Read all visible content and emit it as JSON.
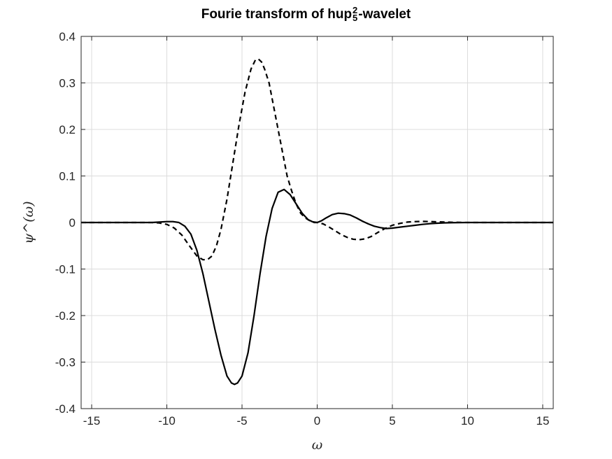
{
  "chart_data": {
    "type": "line",
    "title": {
      "prefix": "Fourie transform of hup",
      "sup": "2",
      "sub": "5",
      "suffix": "-wavelet"
    },
    "xlabel": "ω",
    "ylabel": "ψ^(ω)",
    "xlim": [
      -15.7,
      15.7
    ],
    "ylim": [
      -0.4,
      0.4
    ],
    "xticks": [
      -15,
      -10,
      -5,
      0,
      5,
      10,
      15
    ],
    "xtick_labels": [
      "-15",
      "-10",
      "-5",
      "0",
      "5",
      "10",
      "15"
    ],
    "yticks": [
      -0.4,
      -0.3,
      -0.2,
      -0.1,
      0,
      0.1,
      0.2,
      0.3,
      0.4
    ],
    "ytick_labels": [
      "-0.4",
      "-0.3",
      "-0.2",
      "-0.1",
      "0",
      "0.1",
      "0.2",
      "0.3",
      "0.4"
    ],
    "grid": true,
    "colors": {
      "line": "#000000",
      "grid": "#dcdcdc",
      "axis": "#262626"
    },
    "series": [
      {
        "style": "solid",
        "x": [
          -15.7,
          -12,
          -11,
          -10.5,
          -10,
          -9.6,
          -9.2,
          -8.8,
          -8.4,
          -8,
          -7.6,
          -7.2,
          -6.8,
          -6.4,
          -6.0,
          -5.7,
          -5.5,
          -5.3,
          -5.0,
          -4.6,
          -4.2,
          -3.8,
          -3.4,
          -3.0,
          -2.6,
          -2.2,
          -1.8,
          -1.4,
          -1.0,
          -0.6,
          -0.2,
          0,
          0.3,
          0.6,
          1.0,
          1.4,
          1.8,
          2.2,
          2.6,
          3.0,
          3.4,
          3.8,
          4.2,
          4.6,
          5.0,
          5.5,
          6.0,
          6.5,
          7.0,
          7.5,
          8.0,
          8.5,
          9.0,
          10,
          12,
          15.7
        ],
        "y": [
          0,
          0,
          0,
          0.001,
          0.002,
          0.002,
          0.0,
          -0.008,
          -0.025,
          -0.06,
          -0.11,
          -0.17,
          -0.23,
          -0.285,
          -0.33,
          -0.345,
          -0.348,
          -0.345,
          -0.33,
          -0.28,
          -0.2,
          -0.11,
          -0.03,
          0.03,
          0.065,
          0.071,
          0.06,
          0.04,
          0.02,
          0.006,
          0.0,
          0.0,
          0.004,
          0.01,
          0.017,
          0.02,
          0.019,
          0.016,
          0.01,
          0.003,
          -0.003,
          -0.008,
          -0.011,
          -0.013,
          -0.012,
          -0.01,
          -0.008,
          -0.006,
          -0.004,
          -0.0025,
          -0.0015,
          -0.0008,
          -0.0004,
          0,
          0,
          0
        ]
      },
      {
        "style": "dashed",
        "x": [
          -15.7,
          -12,
          -11,
          -10.5,
          -10,
          -9.5,
          -9.0,
          -8.5,
          -8.0,
          -7.6,
          -7.3,
          -7.0,
          -6.7,
          -6.4,
          -6.0,
          -5.6,
          -5.2,
          -4.8,
          -4.4,
          -4.1,
          -3.9,
          -3.7,
          -3.5,
          -3.2,
          -2.9,
          -2.6,
          -2.3,
          -2.0,
          -1.7,
          -1.4,
          -1.1,
          -0.8,
          -0.5,
          -0.2,
          0,
          0.4,
          0.8,
          1.2,
          1.6,
          2.0,
          2.4,
          2.8,
          3.2,
          3.6,
          4.0,
          4.5,
          5.0,
          5.5,
          6.0,
          6.5,
          7.0,
          7.5,
          8.0,
          9.0,
          10,
          12,
          15.7
        ],
        "y": [
          0,
          0,
          0,
          -0.001,
          -0.004,
          -0.012,
          -0.027,
          -0.05,
          -0.072,
          -0.08,
          -0.08,
          -0.072,
          -0.05,
          -0.015,
          0.05,
          0.13,
          0.21,
          0.28,
          0.33,
          0.35,
          0.351,
          0.345,
          0.33,
          0.3,
          0.25,
          0.2,
          0.15,
          0.1,
          0.068,
          0.04,
          0.02,
          0.01,
          0.004,
          0.001,
          0.0,
          -0.003,
          -0.01,
          -0.018,
          -0.026,
          -0.032,
          -0.036,
          -0.037,
          -0.035,
          -0.03,
          -0.022,
          -0.013,
          -0.006,
          -0.002,
          0.001,
          0.002,
          0.0025,
          0.002,
          0.0015,
          0.0005,
          0,
          0,
          0
        ]
      }
    ]
  }
}
